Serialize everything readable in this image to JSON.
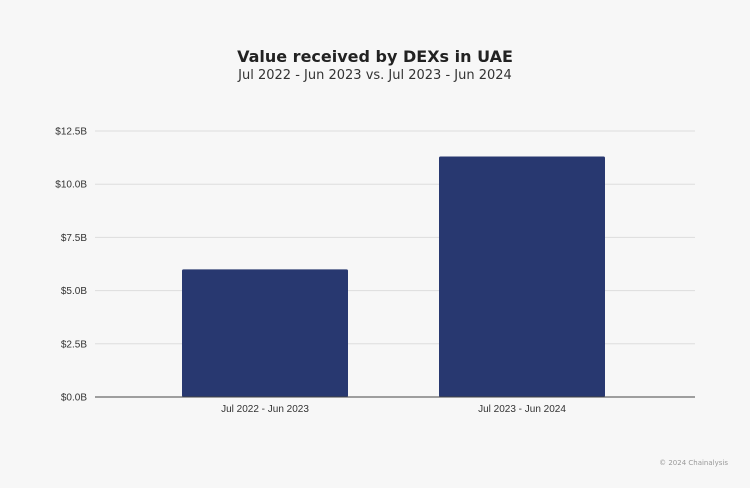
{
  "chart_data": {
    "type": "bar",
    "title": "Value received by DEXs in UAE",
    "subtitle": "Jul 2022 - Jun 2023 vs. Jul 2023 - Jun 2024",
    "categories": [
      "Jul 2022 - Jun 2023",
      "Jul 2023 - Jun 2024"
    ],
    "values": [
      6.0,
      11.3
    ],
    "unit": "B USD",
    "ylim": [
      0,
      12.5
    ],
    "yticks": [
      0,
      2.5,
      5,
      7.5,
      10,
      12.5
    ],
    "ytick_labels": [
      "$0.0B",
      "$2.5B",
      "$5.0B",
      "$7.5B",
      "$10.0B",
      "$12.5B"
    ],
    "xlabel": "",
    "ylabel": "",
    "grid": true,
    "bar_color": "#283870"
  },
  "footer": {
    "credit": "© 2024 Chainalysis"
  }
}
